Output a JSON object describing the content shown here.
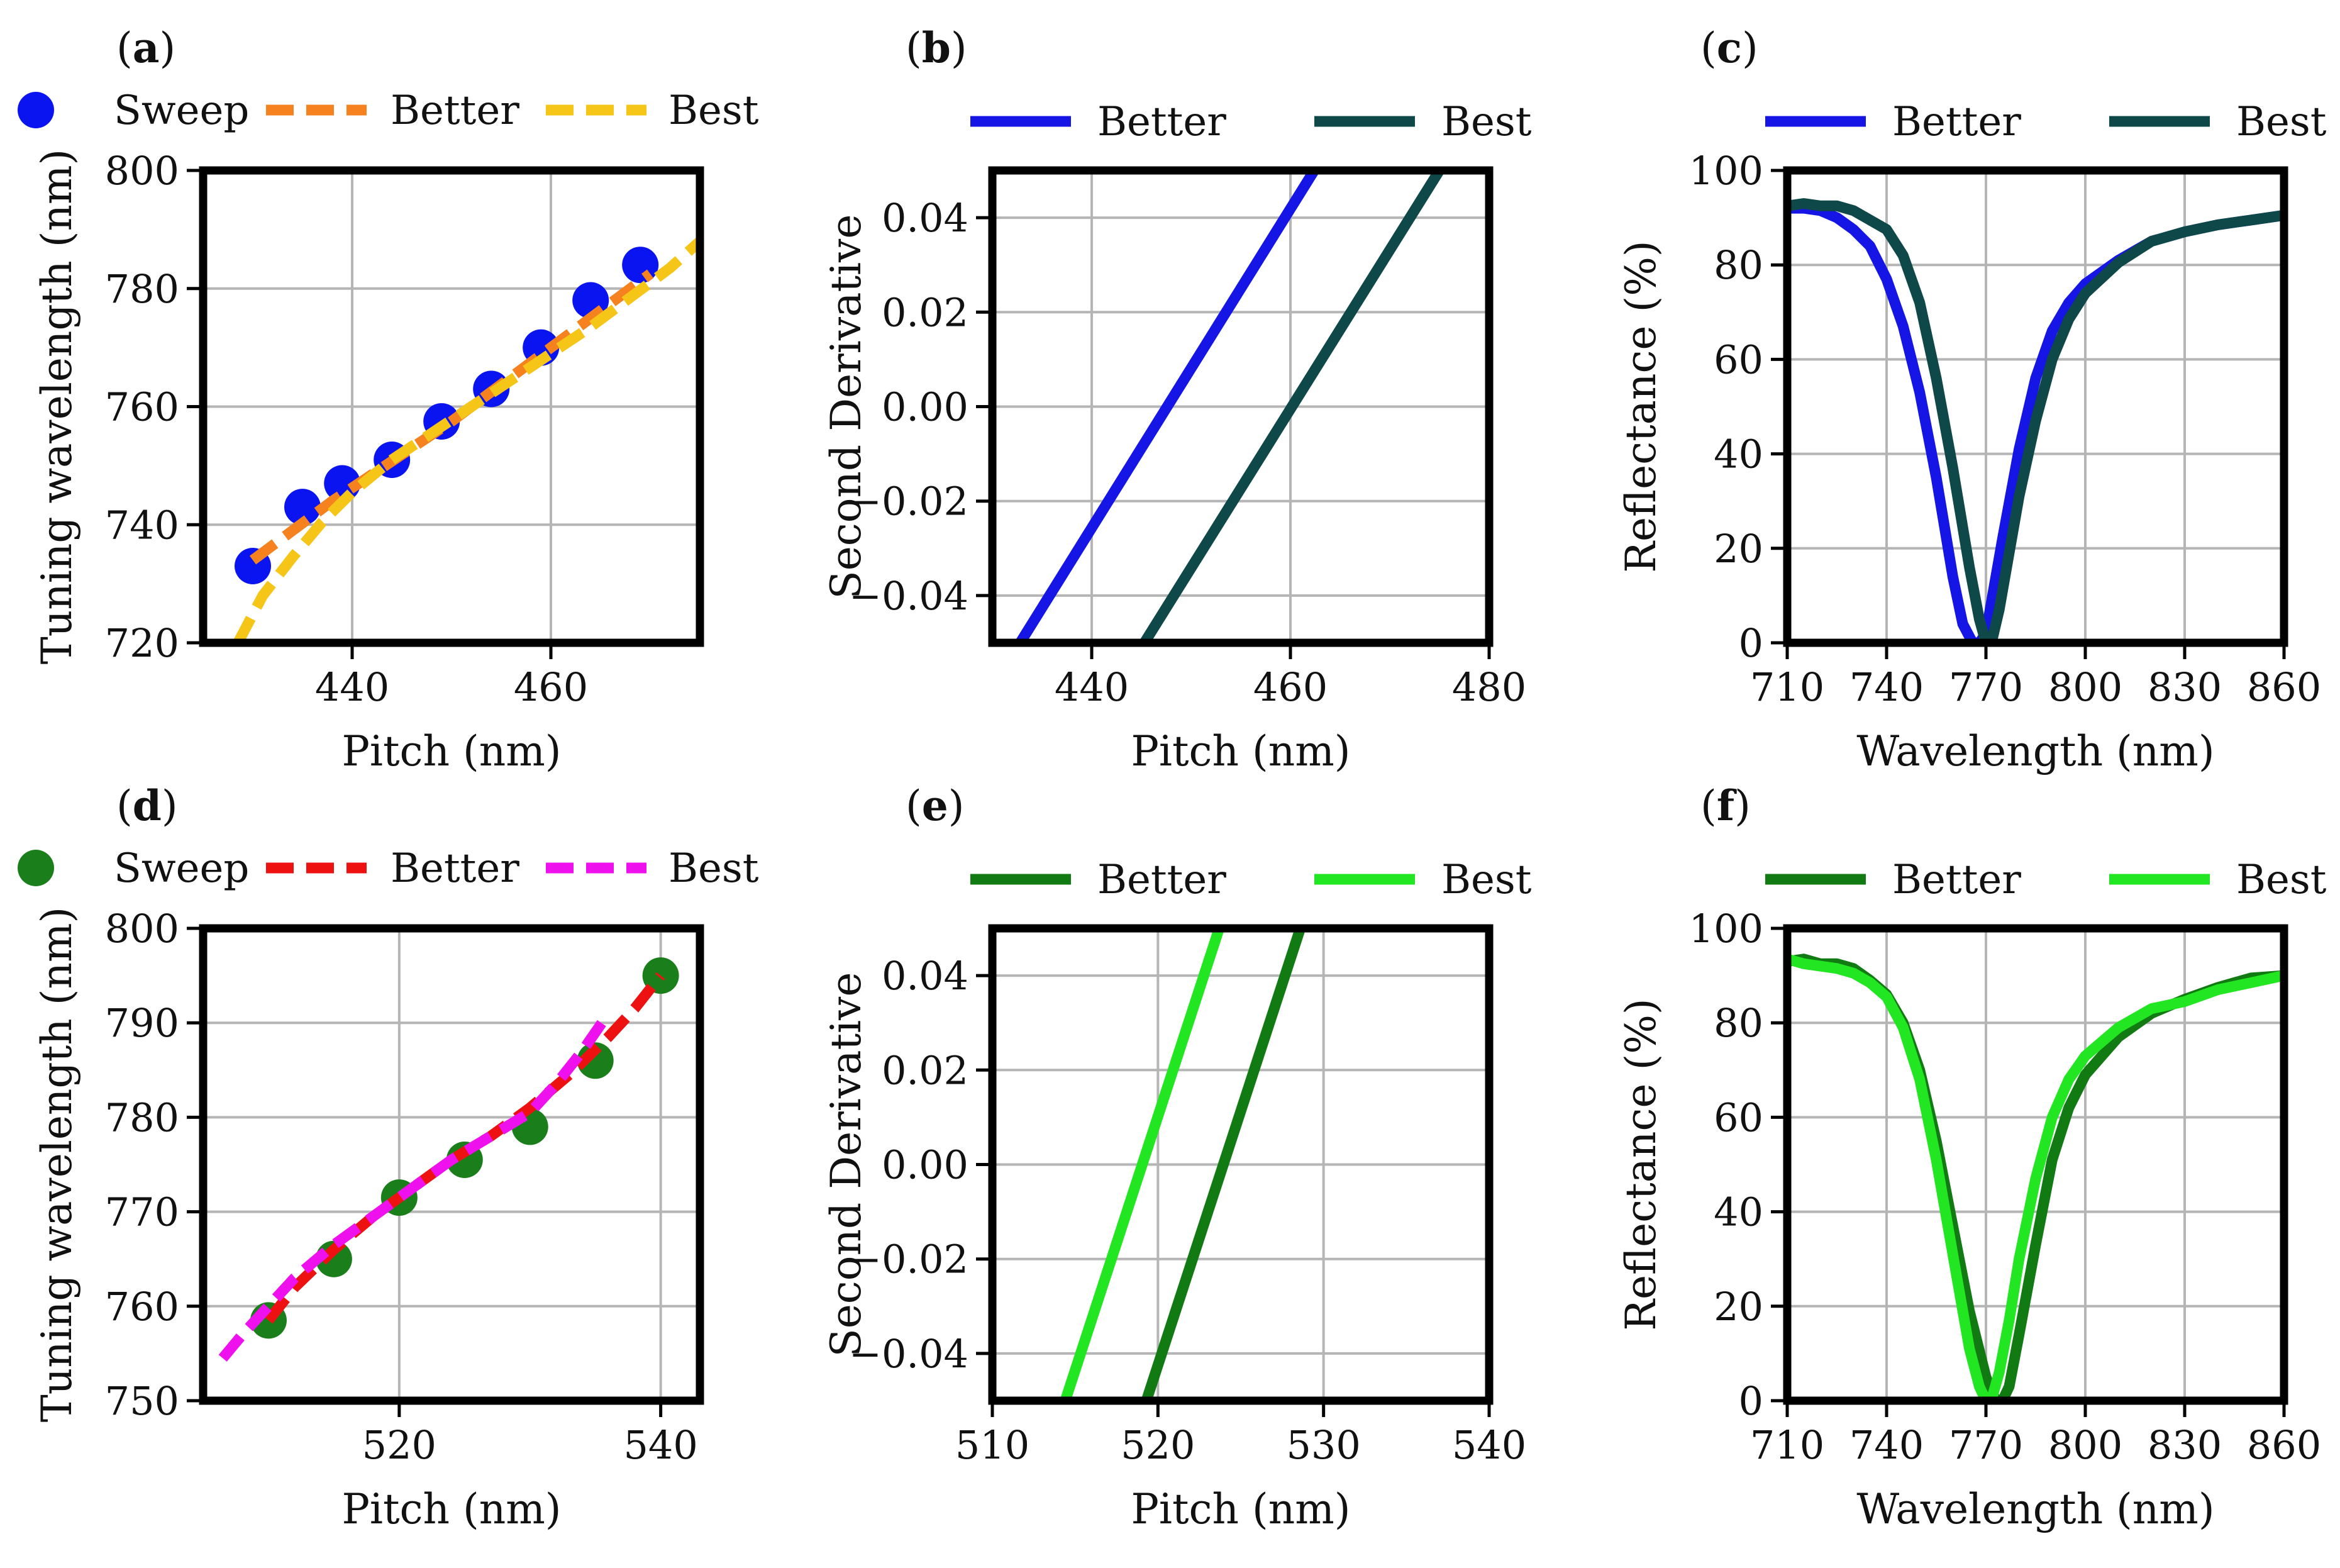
{
  "figure": {
    "colors": {
      "sweep_top": "#0a14f0",
      "better_a": "#f5821e",
      "best_a": "#f5c518",
      "better_bc": "#1515e6",
      "best_bc": "#0f4848",
      "sweep_bottom": "#1a7f1a",
      "better_d": "#ee1111",
      "best_d": "#ee11ee",
      "better_ef": "#127a12",
      "best_ef": "#22e622",
      "grid": "#b5b5b5",
      "frame": "#000000"
    },
    "panels": [
      {
        "id": "a",
        "label": "(a)",
        "type": "scatter+line",
        "xlabel": "Pitch (nm)",
        "ylabel": "Tuning wavelength (nm)",
        "xlim": [
          425,
          475
        ],
        "ylim": [
          720,
          800
        ],
        "xticks": [
          440,
          460
        ],
        "yticks": [
          720,
          740,
          760,
          780,
          800
        ],
        "legend": [
          "Sweep",
          "Better",
          "Best"
        ],
        "series": [
          {
            "name": "Sweep",
            "kind": "points",
            "color": "#0a14f0",
            "x": [
              430,
              435,
              439,
              444,
              449,
              454,
              459,
              464,
              469
            ],
            "y": [
              733,
              743,
              747,
              751,
              757.5,
              763,
              770,
              778,
              784
            ]
          },
          {
            "name": "Better",
            "kind": "dashed",
            "color": "#f5821e",
            "x": [
              430,
              434,
              438,
              442,
              446,
              450,
              454,
              458,
              462,
              466,
              470
            ],
            "y": [
              734,
              739,
              744,
              748.5,
              753,
              757.5,
              762.5,
              767.5,
              772.5,
              777.5,
              782.5
            ]
          },
          {
            "name": "Best",
            "kind": "dashed",
            "color": "#f5c518",
            "x": [
              428.5,
              431,
              434,
              437,
              440,
              444,
              448,
              452,
              456,
              460,
              464,
              468,
              472,
              475
            ],
            "y": [
              720,
              728,
              734.5,
              740.5,
              745.5,
              751,
              755.5,
              760,
              764.5,
              769,
              773.5,
              778.5,
              783.5,
              788
            ]
          }
        ]
      },
      {
        "id": "b",
        "label": "(b)",
        "type": "line",
        "xlabel": "Pitch (nm)",
        "ylabel": "Second Derivative",
        "xlim": [
          430,
          480
        ],
        "ylim": [
          -0.05,
          0.05
        ],
        "xticks": [
          440,
          460,
          480
        ],
        "yticks": [
          -0.04,
          -0.02,
          0.0,
          0.02,
          0.04
        ],
        "ytick_labels": [
          "−0.04",
          "−0.02",
          "0.00",
          "0.02",
          "0.04"
        ],
        "legend": [
          "Better",
          "Best"
        ],
        "series": [
          {
            "name": "Better",
            "kind": "solid",
            "color": "#1515e6",
            "x": [
              432.8,
              462.4
            ],
            "y": [
              -0.05,
              0.05
            ]
          },
          {
            "name": "Best",
            "kind": "solid",
            "color": "#0f4848",
            "x": [
              445.3,
              475.0
            ],
            "y": [
              -0.05,
              0.05
            ]
          }
        ]
      },
      {
        "id": "c",
        "label": "(c)",
        "type": "line",
        "xlabel": "Wavelength (nm)",
        "ylabel": "Reflectance (%)",
        "xlim": [
          710,
          860
        ],
        "ylim": [
          0,
          100
        ],
        "xticks": [
          710,
          740,
          770,
          800,
          830,
          860
        ],
        "yticks": [
          0,
          20,
          40,
          60,
          80,
          100
        ],
        "legend": [
          "Better",
          "Best"
        ],
        "series": [
          {
            "name": "Better",
            "kind": "solid",
            "color": "#1515e6",
            "x": [
              710,
              715,
              720,
              725,
              730,
              735,
              740,
              745,
              750,
              755,
              760,
              763,
              766,
              768,
              770,
              772,
              775,
              780,
              785,
              790,
              795,
              800,
              810,
              820,
              830,
              840,
              850,
              860
            ],
            "y": [
              92,
              92,
              91.5,
              90,
              87.5,
              84,
              77,
              67,
              53,
              35,
              14,
              4,
              0,
              0,
              2,
              10,
              22,
              41,
              56,
              66,
              72,
              76,
              81,
              85,
              87,
              88.5,
              89.5,
              90.5
            ]
          },
          {
            "name": "Best",
            "kind": "solid",
            "color": "#0f4848",
            "x": [
              710,
              715,
              720,
              725,
              730,
              735,
              740,
              745,
              750,
              755,
              760,
              765,
              768,
              770,
              772,
              774,
              777,
              780,
              785,
              790,
              795,
              800,
              810,
              820,
              830,
              840,
              850,
              860
            ],
            "y": [
              92.5,
              93,
              92.5,
              92.5,
              91.5,
              89.5,
              87.5,
              82,
              72,
              56,
              37,
              16,
              5,
              0,
              1,
              7,
              19,
              31,
              47,
              60,
              68.5,
              74,
              80.5,
              85,
              87,
              88.5,
              89.5,
              90.5
            ]
          }
        ]
      },
      {
        "id": "d",
        "label": "(d)",
        "type": "scatter+line",
        "xlabel": "Pitch (nm)",
        "ylabel": "Tuning wavelength (nm)",
        "xlim": [
          505,
          543
        ],
        "ylim": [
          750,
          800
        ],
        "xticks": [
          520,
          540
        ],
        "yticks": [
          750,
          760,
          770,
          780,
          790,
          800
        ],
        "legend": [
          "Sweep",
          "Better",
          "Best"
        ],
        "series": [
          {
            "name": "Sweep",
            "kind": "points",
            "color": "#1a7f1a",
            "x": [
              510,
              515,
              520,
              525,
              530,
              535,
              540
            ],
            "y": [
              758.5,
              765,
              771.5,
              775.5,
              779,
              786,
              795
            ]
          },
          {
            "name": "Better",
            "kind": "dashed",
            "color": "#ee1111",
            "x": [
              510,
              512,
              515,
              518,
              521,
              524,
              527,
              530,
              533,
              536,
              538,
              540
            ],
            "y": [
              758.5,
              762,
              766,
              769.5,
              772.5,
              775.5,
              778,
              781,
              784.5,
              788.5,
              791.5,
              795
            ]
          },
          {
            "name": "Best",
            "kind": "dashed",
            "color": "#ee11ee",
            "x": [
              506.5,
              508,
              510,
              512,
              515,
              518,
              521,
              524,
              527,
              530,
              532,
              534,
              536
            ],
            "y": [
              754.5,
              757,
              760,
              763,
              766.5,
              769.5,
              772.5,
              775.5,
              778,
              780.5,
              783.5,
              787,
              791
            ]
          }
        ]
      },
      {
        "id": "e",
        "label": "(e)",
        "type": "line",
        "xlabel": "Pitch (nm)",
        "ylabel": "Second Derivative",
        "xlim": [
          510,
          540
        ],
        "ylim": [
          -0.05,
          0.05
        ],
        "xticks": [
          510,
          520,
          530,
          540
        ],
        "yticks": [
          -0.04,
          -0.02,
          0.0,
          0.02,
          0.04
        ],
        "ytick_labels": [
          "−0.04",
          "−0.02",
          "0.00",
          "0.02",
          "0.04"
        ],
        "legend": [
          "Better",
          "Best"
        ],
        "series": [
          {
            "name": "Better",
            "kind": "solid",
            "color": "#127a12",
            "x": [
              519.3,
              528.6
            ],
            "y": [
              -0.05,
              0.05
            ]
          },
          {
            "name": "Best",
            "kind": "solid",
            "color": "#22e622",
            "x": [
              514.4,
              523.7
            ],
            "y": [
              -0.05,
              0.05
            ]
          }
        ]
      },
      {
        "id": "f",
        "label": "(f)",
        "type": "line",
        "xlabel": "Wavelength (nm)",
        "ylabel": "Reflectance (%)",
        "xlim": [
          710,
          860
        ],
        "ylim": [
          0,
          100
        ],
        "xticks": [
          710,
          740,
          770,
          800,
          830,
          860
        ],
        "yticks": [
          0,
          20,
          40,
          60,
          80,
          100
        ],
        "legend": [
          "Better",
          "Best"
        ],
        "series": [
          {
            "name": "Better",
            "kind": "solid",
            "color": "#127a12",
            "x": [
              710,
              715,
              720,
              725,
              730,
              735,
              740,
              745,
              750,
              755,
              760,
              765,
              770,
              773,
              775,
              777,
              780,
              785,
              790,
              795,
              800,
              810,
              820,
              830,
              840,
              850,
              860
            ],
            "y": [
              93,
              93.5,
              92.5,
              92.5,
              91.5,
              89,
              86,
              80,
              70,
              55,
              37,
              19,
              5,
              0,
              0,
              3,
              14,
              33,
              51,
              62,
              69,
              77,
              82,
              85,
              87.5,
              89.5,
              90
            ]
          },
          {
            "name": "Best",
            "kind": "solid",
            "color": "#22e622",
            "x": [
              710,
              715,
              720,
              725,
              730,
              735,
              740,
              745,
              750,
              755,
              760,
              765,
              768,
              770,
              772,
              774,
              777,
              780,
              785,
              790,
              795,
              800,
              810,
              820,
              830,
              840,
              850,
              860
            ],
            "y": [
              93.5,
              92.5,
              92,
              91.5,
              90.5,
              88.5,
              85.5,
              79,
              68,
              51,
              31,
              11,
              3,
              0,
              1,
              6,
              17,
              30,
              47,
              60,
              68,
              73,
              79,
              83,
              84.5,
              87,
              88.5,
              90
            ]
          }
        ]
      }
    ]
  }
}
